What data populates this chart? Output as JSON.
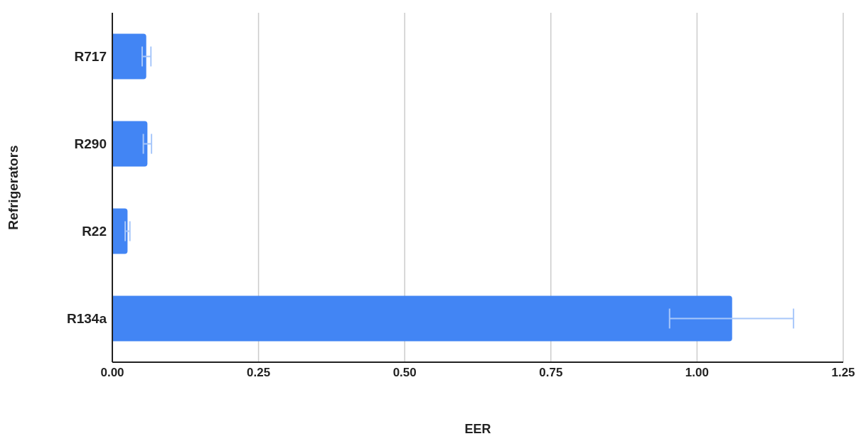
{
  "chart_data": {
    "type": "bar",
    "orientation": "horizontal",
    "xlabel": "EER",
    "ylabel": "Refrigerators",
    "categories": [
      "R717",
      "R290",
      "R22",
      "R134a"
    ],
    "values": [
      0.058,
      0.06,
      0.026,
      1.06
    ],
    "errors": [
      [
        0.051,
        0.066
      ],
      [
        0.053,
        0.067
      ],
      [
        0.022,
        0.03
      ],
      [
        0.953,
        1.165
      ]
    ],
    "color": "#4285f4",
    "xlim": [
      0,
      1.25
    ],
    "xticks": [
      {
        "value": 0,
        "label": "0.00"
      },
      0.25,
      {
        "value": 0.5,
        "label": "0.50"
      },
      0.75,
      {
        "value": 1,
        "label": "1.00"
      },
      1.25
    ],
    "grid": "x"
  }
}
